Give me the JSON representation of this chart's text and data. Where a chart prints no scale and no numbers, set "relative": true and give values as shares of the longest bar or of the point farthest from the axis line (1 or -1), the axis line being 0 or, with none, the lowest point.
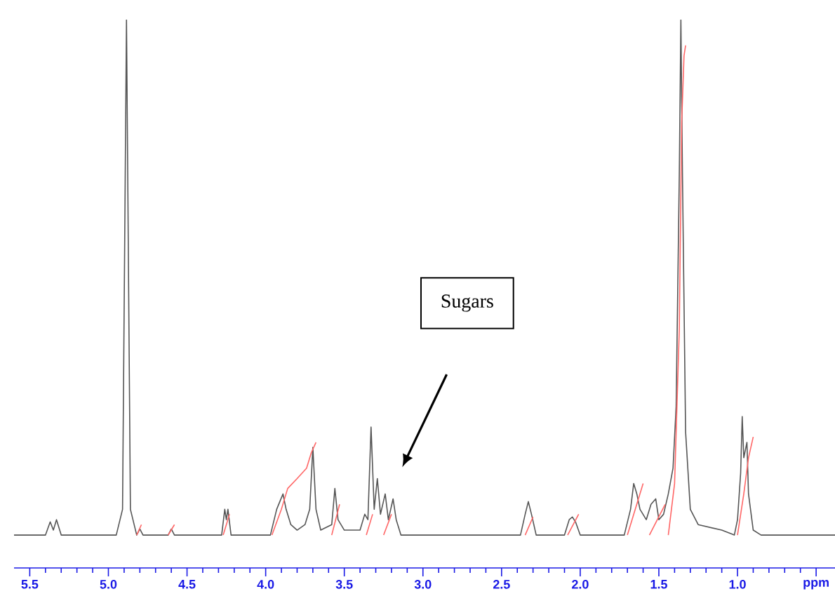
{
  "chart_data": {
    "type": "line",
    "relative": true,
    "xlim": [
      5.6,
      0.38
    ],
    "xticks": [
      {
        "value": 5.5,
        "label": "5.5"
      },
      {
        "value": 5,
        "label": "5.0"
      },
      {
        "value": 4.5,
        "label": "4.5"
      },
      {
        "value": 4,
        "label": "4.0"
      },
      {
        "value": 3.5,
        "label": "3.5"
      },
      {
        "value": 3,
        "label": "3.0"
      },
      {
        "value": 2.5,
        "label": "2.5"
      },
      {
        "value": 2,
        "label": "2.0"
      },
      {
        "value": 1.5,
        "label": "1.5"
      },
      {
        "value": 1,
        "label": "1.0"
      },
      {
        "value": 0.5,
        "label": "ppm"
      }
    ],
    "annotations": [
      "Sugars"
    ],
    "series": [
      {
        "color": "#555555",
        "x": [
          5.6,
          5.4,
          5.37,
          5.35,
          5.33,
          5.3,
          4.95,
          4.91,
          4.885,
          4.86,
          4.82,
          4.8,
          4.78,
          4.62,
          4.6,
          4.58,
          4.28,
          4.26,
          4.25,
          4.24,
          4.22,
          3.97,
          3.93,
          3.91,
          3.89,
          3.87,
          3.84,
          3.8,
          3.75,
          3.72,
          3.7,
          3.68,
          3.65,
          3.58,
          3.56,
          3.54,
          3.5,
          3.4,
          3.37,
          3.35,
          3.33,
          3.31,
          3.29,
          3.27,
          3.24,
          3.22,
          3.19,
          3.17,
          3.14,
          2.38,
          2.35,
          2.33,
          2.31,
          2.28,
          2.1,
          2.07,
          2.05,
          2.03,
          2.0,
          1.72,
          1.68,
          1.66,
          1.64,
          1.62,
          1.58,
          1.55,
          1.52,
          1.5,
          1.47,
          1.44,
          1.41,
          1.39,
          1.37,
          1.36,
          1.35,
          1.33,
          1.3,
          1.25,
          1.1,
          1.02,
          1.0,
          0.98,
          0.97,
          0.96,
          0.94,
          0.93,
          0.9,
          0.85,
          0.38
        ],
        "values": [
          0.06,
          0.06,
          0.084,
          0.069,
          0.088,
          0.06,
          0.06,
          0.107,
          1.0,
          0.107,
          0.06,
          0.071,
          0.06,
          0.06,
          0.071,
          0.06,
          0.06,
          0.107,
          0.088,
          0.107,
          0.06,
          0.06,
          0.107,
          0.121,
          0.135,
          0.107,
          0.079,
          0.069,
          0.079,
          0.107,
          0.22,
          0.107,
          0.069,
          0.079,
          0.145,
          0.088,
          0.069,
          0.069,
          0.098,
          0.088,
          0.257,
          0.107,
          0.163,
          0.098,
          0.135,
          0.088,
          0.126,
          0.088,
          0.06,
          0.06,
          0.098,
          0.121,
          0.098,
          0.06,
          0.06,
          0.088,
          0.093,
          0.084,
          0.06,
          0.06,
          0.107,
          0.154,
          0.135,
          0.107,
          0.088,
          0.116,
          0.126,
          0.088,
          0.098,
          0.135,
          0.182,
          0.295,
          0.718,
          1.0,
          0.718,
          0.248,
          0.107,
          0.079,
          0.069,
          0.06,
          0.088,
          0.173,
          0.276,
          0.201,
          0.229,
          0.135,
          0.069,
          0.06,
          0.06
        ]
      },
      {
        "color": "#ff6666",
        "x": [
          4.82,
          4.79,
          4.78,
          4.62,
          4.58,
          4.57,
          4.27,
          4.23,
          4.22,
          3.96,
          3.9,
          3.86,
          3.8,
          3.74,
          3.71,
          3.68,
          3.67,
          3.58,
          3.53,
          3.52,
          3.36,
          3.32,
          3.31,
          3.25,
          3.2,
          3.19,
          2.35,
          2.3,
          2.29,
          2.08,
          2.01,
          2.0,
          1.7,
          1.6,
          1.59,
          1.56,
          1.46,
          1.45,
          1.44,
          1.4,
          1.37,
          1.355,
          1.34,
          1.33,
          1.32,
          1.0,
          0.96,
          0.93,
          0.9
        ],
        "values": [
          0.06,
          0.079,
          null,
          0.06,
          0.079,
          null,
          0.06,
          0.098,
          null,
          0.06,
          0.107,
          0.145,
          0.163,
          0.182,
          0.21,
          0.229,
          null,
          0.06,
          0.116,
          null,
          0.06,
          0.098,
          null,
          0.06,
          0.098,
          null,
          0.06,
          0.093,
          null,
          0.06,
          0.098,
          null,
          0.06,
          0.154,
          null,
          0.06,
          0.116,
          null,
          0.06,
          0.154,
          0.436,
          0.812,
          0.934,
          0.953,
          null,
          0.06,
          0.135,
          0.201,
          0.239
        ]
      }
    ]
  }
}
